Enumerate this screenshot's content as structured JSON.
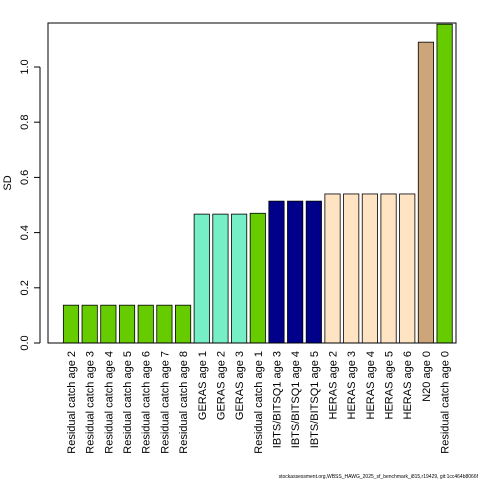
{
  "chart_data": {
    "type": "bar",
    "ylabel": "SD",
    "xlabel": "",
    "ylim": [
      0,
      1.15
    ],
    "yticks": [
      0.0,
      0.2,
      0.4,
      0.6,
      0.8,
      1.0
    ],
    "ytick_labels": [
      "0.0",
      "0.2",
      "0.4",
      "0.6",
      "0.8",
      "1.0"
    ],
    "grid": false,
    "categories": [
      "Residual catch age 2",
      "Residual catch age 3",
      "Residual catch age 4",
      "Residual catch age 5",
      "Residual catch age 6",
      "Residual catch age 7",
      "Residual catch age 8",
      "GERAS age 1",
      "GERAS age 2",
      "GERAS age 3",
      "Residual catch age 1",
      "IBTS/BITSQ1 age 3",
      "IBTS/BITSQ1 age 4",
      "IBTS/BITSQ1 age 5",
      "HERAS age 2",
      "HERAS age 3",
      "HERAS age 4",
      "HERAS age 5",
      "HERAS age 6",
      "N20 age 0",
      "Residual catch age 0"
    ],
    "values": [
      0.137,
      0.137,
      0.137,
      0.137,
      0.137,
      0.137,
      0.137,
      0.467,
      0.467,
      0.467,
      0.47,
      0.514,
      0.514,
      0.514,
      0.54,
      0.54,
      0.54,
      0.54,
      0.54,
      1.09,
      1.155
    ],
    "bar_colors": [
      "#66cc00",
      "#66cc00",
      "#66cc00",
      "#66cc00",
      "#66cc00",
      "#66cc00",
      "#66cc00",
      "#76eec6",
      "#76eec6",
      "#76eec6",
      "#66cc00",
      "#00008b",
      "#00008b",
      "#00008b",
      "#ffe4c4",
      "#ffe4c4",
      "#ffe4c4",
      "#ffe4c4",
      "#ffe4c4",
      "#cda57a",
      "#66cc00"
    ]
  },
  "footer": {
    "text": "stockassessment.org,WBSS_HAWG_2025_sf_benchmark_i815,r19429, git:1cc464b8066f"
  }
}
